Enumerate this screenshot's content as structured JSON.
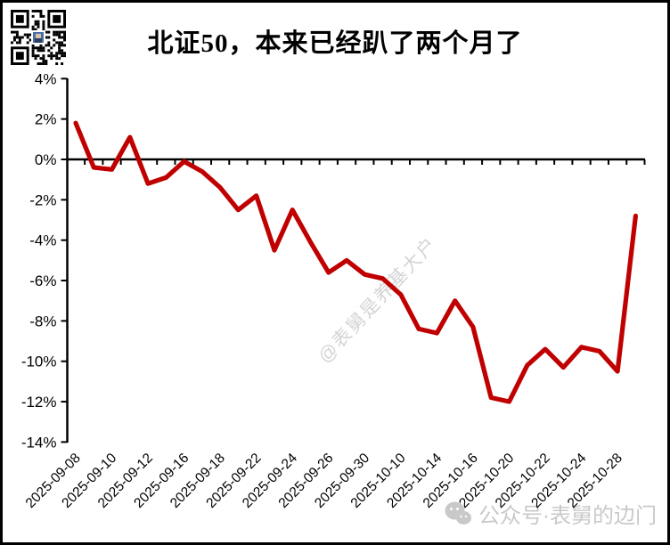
{
  "header": {
    "title": "北证50，本来已经趴了两个月了"
  },
  "watermarks": {
    "diagonal": "@表舅是养基大户",
    "bottom_text": "公众号·表舅的边门",
    "bottom_icon": "wechat-logo-icon",
    "color": "#c9c9c9"
  },
  "chart_data": {
    "type": "line",
    "title": "北证50，本来已经趴了两个月了",
    "x": [
      "2025-09-08",
      "2025-09-09",
      "2025-09-10",
      "2025-09-11",
      "2025-09-12",
      "2025-09-15",
      "2025-09-16",
      "2025-09-17",
      "2025-09-18",
      "2025-09-19",
      "2025-09-22",
      "2025-09-23",
      "2025-09-24",
      "2025-09-25",
      "2025-09-26",
      "2025-09-29",
      "2025-09-30",
      "2025-10-09",
      "2025-10-10",
      "2025-10-13",
      "2025-10-14",
      "2025-10-15",
      "2025-10-16",
      "2025-10-17",
      "2025-10-20",
      "2025-10-21",
      "2025-10-22",
      "2025-10-23",
      "2025-10-24",
      "2025-10-27",
      "2025-10-28",
      "2025-10-29"
    ],
    "values": [
      1.8,
      -0.4,
      -0.5,
      1.1,
      -1.2,
      -0.9,
      -0.1,
      -0.6,
      -1.4,
      -2.5,
      -1.8,
      -4.5,
      -2.5,
      -4.1,
      -5.6,
      -5.0,
      -5.7,
      -5.9,
      -6.7,
      -8.4,
      -8.6,
      -7.0,
      -8.3,
      -11.8,
      -12.0,
      -10.2,
      -9.4,
      -10.3,
      -9.3,
      -9.5,
      -10.5,
      -2.8
    ],
    "value_unit": "percent",
    "label_every": 2,
    "x_tick_labels": [
      "2025-09-08",
      "2025-09-10",
      "2025-09-12",
      "2025-09-16",
      "2025-09-18",
      "2025-09-22",
      "2025-09-24",
      "2025-09-26",
      "2025-09-30",
      "2025-10-10",
      "2025-10-14",
      "2025-10-16",
      "2025-10-20",
      "2025-10-22",
      "2025-10-24",
      "2025-10-28"
    ],
    "y_ticks": [
      4,
      2,
      0,
      -2,
      -4,
      -6,
      -8,
      -10,
      -12,
      -14
    ],
    "y_tick_labels": [
      "4%",
      "2%",
      "0%",
      "-2%",
      "-4%",
      "-6%",
      "-8%",
      "-10%",
      "-12%",
      "-14%"
    ],
    "ylim": [
      -14,
      4
    ],
    "grid": false,
    "legend": "none",
    "line_color": "#c00000",
    "axis_color": "#000000"
  }
}
